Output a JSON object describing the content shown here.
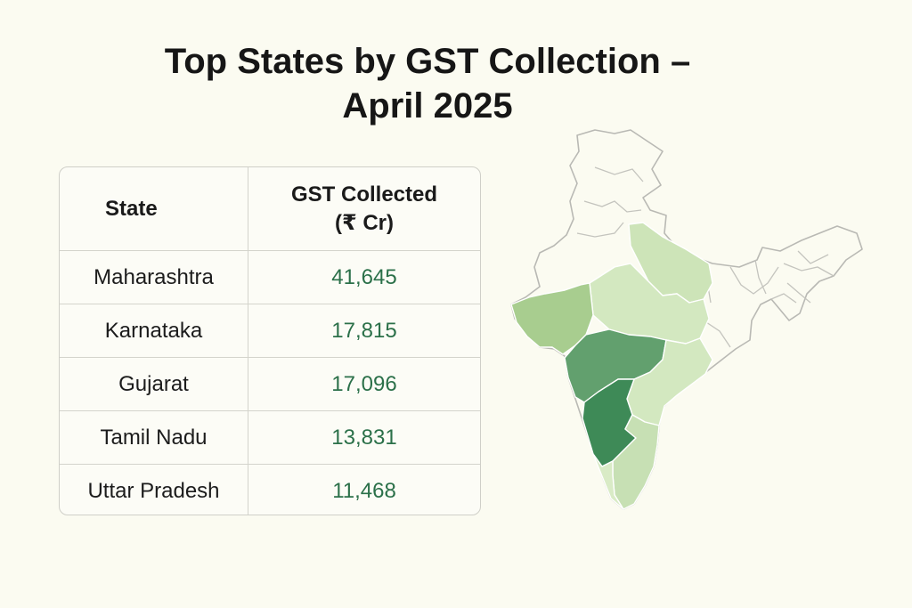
{
  "title": {
    "line1": "Top States by GST Collection –",
    "line2": "April 2025"
  },
  "colors": {
    "value_text": "#2b7049",
    "map_top1": "#3e8a57",
    "map_top2": "#62a06e",
    "map_top3": "#a8cd8f",
    "map_top4": "#c7e0b4",
    "map_top5": "#cde4b8",
    "map_outline": "#b9b9b4"
  },
  "chart_data": {
    "type": "table",
    "title": "Top States by GST Collection – April 2025",
    "columns": [
      {
        "label": "State"
      },
      {
        "label_line1": "GST Collected",
        "label_line2": "(₹ Cr)"
      }
    ],
    "rows": [
      {
        "state": "Maharashtra",
        "value": 41645,
        "display": "41,645"
      },
      {
        "state": "Karnataka",
        "value": 17815,
        "display": "17,815"
      },
      {
        "state": "Gujarat",
        "value": 17096,
        "display": "17,096"
      },
      {
        "state": "Tamil Nadu",
        "value": 13831,
        "display": "13,831"
      },
      {
        "state": "Uttar Pradesh",
        "value": 11468,
        "display": "11,468"
      }
    ],
    "map": {
      "type": "choropleth",
      "region": "India",
      "highlighted_states": [
        "Maharashtra",
        "Karnataka",
        "Gujarat",
        "Tamil Nadu",
        "Uttar Pradesh"
      ]
    }
  }
}
